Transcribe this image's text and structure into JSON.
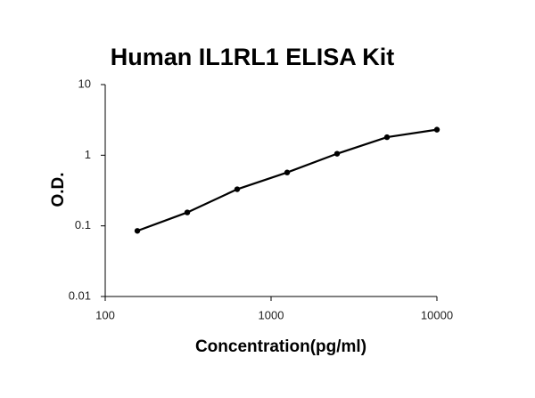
{
  "chart_data": {
    "type": "line",
    "title": "Human IL1RL1 ELISA Kit",
    "x_label": "Concentration(pg/ml)",
    "y_label": "O.D.",
    "x": [
      156.25,
      312.5,
      625,
      1250,
      2500,
      5000,
      10000
    ],
    "series": [
      {
        "color": "#000000",
        "values": [
          0.085,
          0.155,
          0.33,
          0.57,
          1.05,
          1.8,
          2.3
        ]
      }
    ],
    "xscale": "log",
    "yscale": "log",
    "xlim": [
      100,
      10000
    ],
    "xticks": [
      100,
      1000,
      10000
    ],
    "ylim": [
      0.01,
      10
    ],
    "yticks": [
      0.01,
      0.1,
      1,
      10
    ]
  }
}
